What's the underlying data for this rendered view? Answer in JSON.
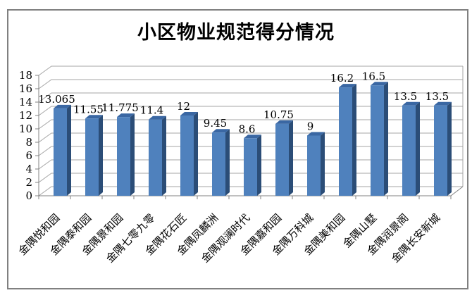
{
  "chart_data": {
    "type": "bar",
    "style": "3d-column",
    "title": "小区物业规范得分情况",
    "categories": [
      "金隅悦和园",
      "金隅泰和园",
      "金隅景和园",
      "金隅七零九零",
      "金隅花石匠",
      "金隅凤麟洲",
      "金隅观澜时代",
      "金隅嘉和园",
      "金隅万科城",
      "金隅美和园",
      "金隅山墅",
      "金隅润景阁",
      "金隅长安新城"
    ],
    "values": [
      13.065,
      11.55,
      11.775,
      11.4,
      12,
      9.45,
      8.6,
      10.75,
      9,
      16.2,
      16.5,
      13.5,
      13.5
    ],
    "data_labels": [
      "13.065",
      "11.55",
      "11.775",
      "11.4",
      "12",
      "9.45",
      "8.6",
      "10.75",
      "9",
      "16.2",
      "16.5",
      "13.5",
      "13.5"
    ],
    "xlabel": "",
    "ylabel": "",
    "ylim": [
      0,
      18
    ],
    "ytick_interval": 2,
    "yticks": [
      "0",
      "2",
      "4",
      "6",
      "8",
      "10",
      "12",
      "14",
      "16",
      "18"
    ],
    "grid": true,
    "legend": false,
    "colors": {
      "bar_front": "#4F81BD",
      "bar_side": "#2B4D77",
      "bar_top": "#3A67A3",
      "gridline": "#A6A6A6",
      "axis": "#808080",
      "text": "#000000",
      "frame_border": "#808080",
      "background": "#FFFFFF"
    }
  }
}
